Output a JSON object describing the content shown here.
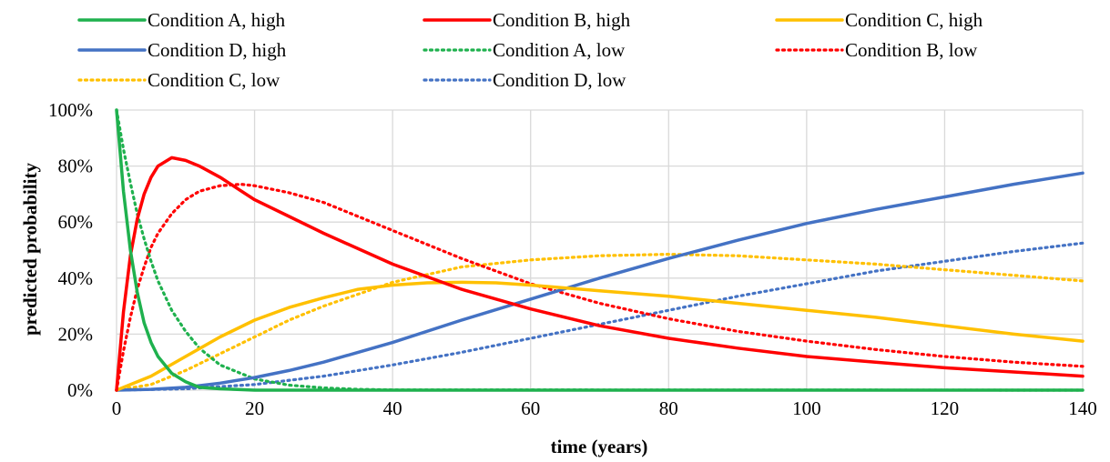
{
  "chart_data": {
    "type": "line",
    "xlabel": "time (years)",
    "ylabel": "predicted probability",
    "xlim": [
      0,
      140
    ],
    "ylim": [
      0,
      100
    ],
    "x_ticks": [
      "0",
      "20",
      "40",
      "60",
      "80",
      "100",
      "120",
      "140"
    ],
    "y_ticks": [
      "0%",
      "20%",
      "40%",
      "60%",
      "80%",
      "100%"
    ],
    "grid": true,
    "legend_position": "top",
    "series": [
      {
        "name": "Condition A, high",
        "color": "#1fb14e",
        "style": "solid",
        "x": [
          0,
          1,
          2,
          3,
          4,
          5,
          6,
          8,
          10,
          12,
          15,
          20,
          30,
          140
        ],
        "y": [
          100,
          71,
          50,
          35,
          24,
          17,
          12,
          6,
          3,
          1,
          0.5,
          0,
          0,
          0
        ]
      },
      {
        "name": "Condition B, high",
        "color": "#ff0000",
        "style": "solid",
        "x": [
          0,
          1,
          2,
          3,
          4,
          5,
          6,
          8,
          10,
          12,
          15,
          20,
          25,
          30,
          40,
          50,
          60,
          70,
          80,
          90,
          100,
          110,
          120,
          130,
          140
        ],
        "y": [
          0,
          28,
          48,
          61,
          70,
          76,
          80,
          83,
          82,
          80,
          76,
          68,
          62,
          56,
          45,
          36,
          29,
          23,
          18.5,
          15,
          12,
          10,
          8,
          6.5,
          5
        ]
      },
      {
        "name": "Condition C, high",
        "color": "#ffc000",
        "style": "solid",
        "x": [
          0,
          5,
          10,
          15,
          20,
          25,
          30,
          35,
          40,
          45,
          50,
          55,
          60,
          70,
          80,
          90,
          100,
          110,
          120,
          130,
          140
        ],
        "y": [
          0,
          5,
          12,
          19,
          25,
          29.5,
          33,
          36,
          37.5,
          38.3,
          38.5,
          38.3,
          37.5,
          35.5,
          33.5,
          31,
          28.5,
          26,
          23,
          20,
          17.5
        ]
      },
      {
        "name": "Condition D, high",
        "color": "#4472c4",
        "style": "solid",
        "x": [
          0,
          5,
          10,
          15,
          20,
          25,
          30,
          40,
          50,
          60,
          70,
          80,
          90,
          100,
          110,
          120,
          130,
          140
        ],
        "y": [
          0,
          0.3,
          1,
          2.5,
          4.5,
          7,
          10,
          17,
          25,
          32.5,
          40,
          47,
          53.5,
          59.5,
          64.5,
          69,
          73.5,
          77.5
        ]
      },
      {
        "name": "Condition A, low",
        "color": "#1fb14e",
        "style": "dotted",
        "x": [
          0,
          1,
          2,
          3,
          4,
          5,
          6,
          8,
          10,
          12,
          15,
          20,
          25,
          30,
          35,
          40,
          140
        ],
        "y": [
          100,
          86,
          74,
          63,
          54,
          46,
          39,
          28.5,
          21,
          15,
          9,
          4,
          1.8,
          0.8,
          0.3,
          0.1,
          0
        ]
      },
      {
        "name": "Condition B, low",
        "color": "#ff0000",
        "style": "dotted",
        "x": [
          0,
          1,
          2,
          3,
          4,
          5,
          6,
          8,
          10,
          12,
          15,
          18,
          20,
          25,
          30,
          40,
          50,
          60,
          70,
          80,
          90,
          100,
          110,
          120,
          130,
          140
        ],
        "y": [
          0,
          14,
          26,
          36,
          44,
          51,
          56,
          63,
          68,
          71,
          73,
          73.5,
          73,
          70.5,
          67,
          57,
          47,
          38,
          31,
          25.5,
          21,
          17.5,
          14.5,
          12,
          10,
          8.5
        ]
      },
      {
        "name": "Condition C, low",
        "color": "#ffc000",
        "style": "dotted",
        "x": [
          0,
          5,
          10,
          15,
          20,
          25,
          30,
          40,
          50,
          60,
          70,
          80,
          90,
          100,
          110,
          120,
          130,
          140
        ],
        "y": [
          0,
          2,
          7,
          13,
          19,
          25,
          30,
          38.5,
          44,
          46.5,
          48,
          48.5,
          48,
          46.5,
          45,
          43,
          41,
          39
        ]
      },
      {
        "name": "Condition D, low",
        "color": "#4472c4",
        "style": "dotted",
        "x": [
          0,
          10,
          20,
          30,
          40,
          50,
          60,
          70,
          80,
          90,
          100,
          110,
          120,
          130,
          140
        ],
        "y": [
          0,
          0.5,
          2,
          5,
          9,
          13.5,
          18.5,
          23.5,
          28.5,
          33.5,
          38,
          42.5,
          46,
          49.5,
          52.5
        ]
      }
    ]
  }
}
